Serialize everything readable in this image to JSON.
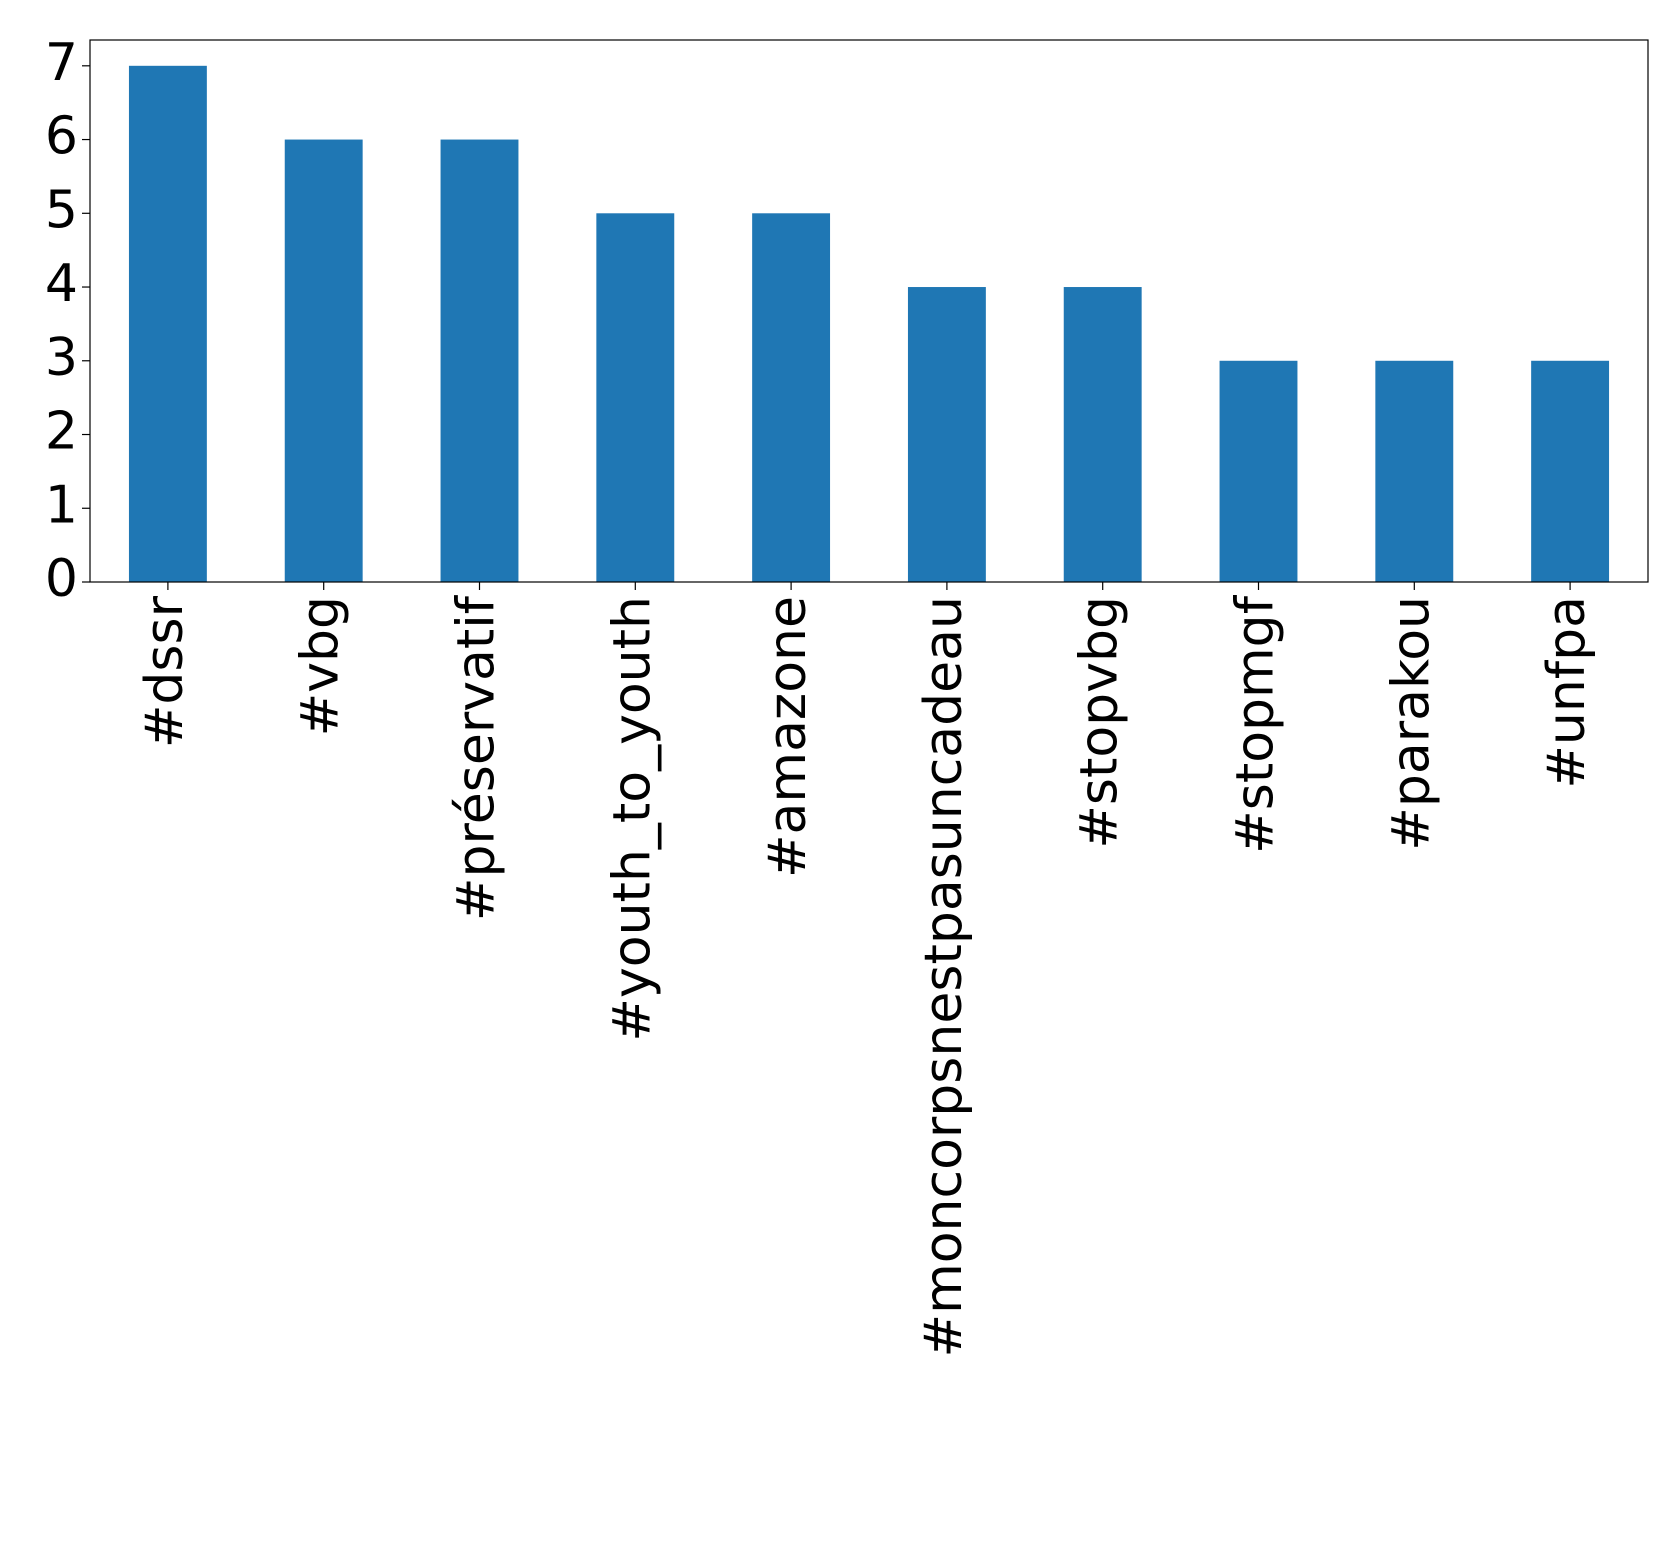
{
  "chart_data": {
    "type": "bar",
    "categories": [
      "#dssr",
      "#vbg",
      "#préservatif",
      "#youth_to_youth",
      "#amazone",
      "#moncorpsnestpasuncadeau",
      "#stopvbg",
      "#stopmgf",
      "#parakou",
      "#unfpa"
    ],
    "values": [
      7,
      6,
      6,
      5,
      5,
      4,
      4,
      3,
      3,
      3
    ],
    "color": "#1f77b4",
    "ylim": [
      0,
      7.35
    ],
    "yticks": [
      0,
      1,
      2,
      3,
      4,
      5,
      6,
      7
    ],
    "grid": false
  }
}
